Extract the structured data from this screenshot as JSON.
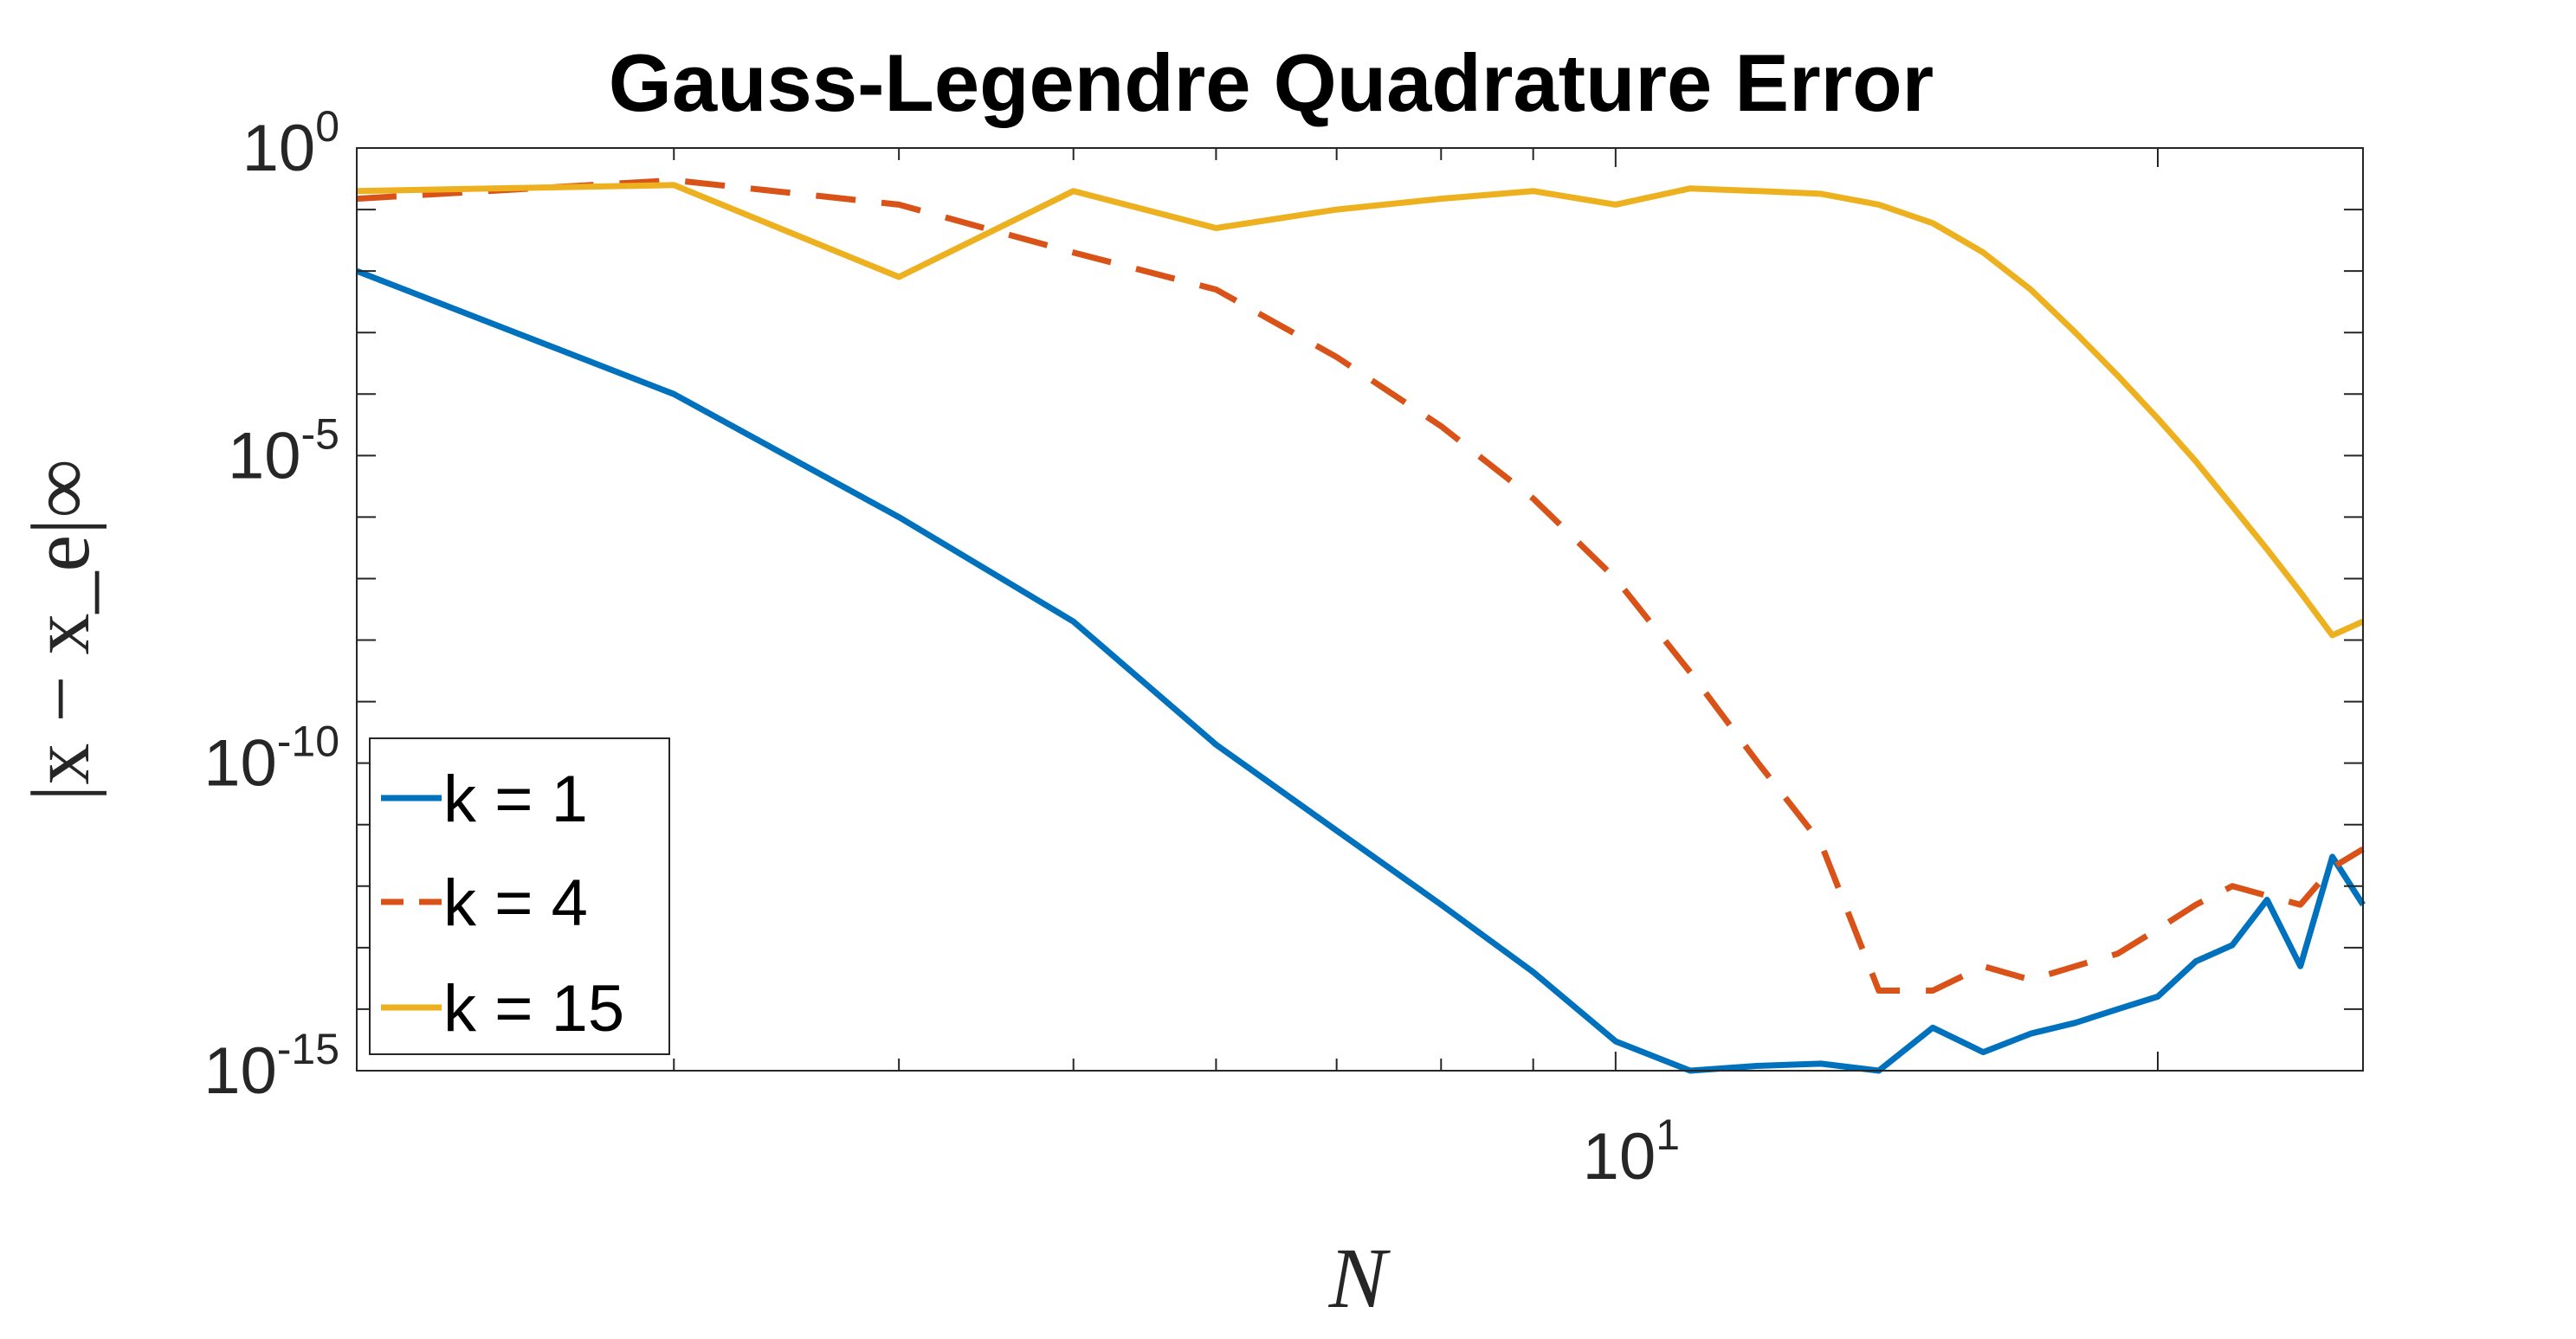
{
  "chart_data": {
    "type": "line",
    "title": "Gauss-Legendre Quadrature Error",
    "xlabel": "N",
    "ylabel": "|x − x_e|∞",
    "xscale": "log",
    "yscale": "log",
    "xlim": [
      2,
      26
    ],
    "ylim": [
      1e-15,
      1
    ],
    "grid": "off",
    "legend_position": "lower-left",
    "x_ticks": [
      {
        "value": 10,
        "base": "10",
        "exp": "1"
      }
    ],
    "y_ticks": [
      {
        "value": 1e-15,
        "base": "10",
        "exp": "-15"
      },
      {
        "value": 1e-10,
        "base": "10",
        "exp": "-10"
      },
      {
        "value": 1e-05,
        "base": "10",
        "exp": "-5"
      },
      {
        "value": 1,
        "base": "10",
        "exp": "0"
      }
    ],
    "series": [
      {
        "name": "k = 1",
        "color": "#0072BD",
        "style": "solid",
        "x": [
          2,
          3,
          4,
          5,
          6,
          7,
          8,
          9,
          10,
          11,
          12,
          13,
          14,
          15,
          16,
          17,
          18,
          19,
          20,
          21,
          22,
          23,
          24,
          25,
          26
        ],
        "y": [
          0.01,
          0.0001,
          1e-06,
          2e-08,
          2e-10,
          8e-12,
          5e-13,
          4e-14,
          3e-15,
          1e-15,
          1.2e-15,
          1.3e-15,
          1e-15,
          5e-15,
          2e-15,
          4e-15,
          6e-15,
          1e-14,
          1.6e-14,
          6e-14,
          1.1e-13,
          6e-13,
          5e-14,
          3e-12,
          5e-13
        ]
      },
      {
        "name": "k = 4",
        "color": "#D95319",
        "style": "dashed",
        "x": [
          2,
          3,
          4,
          5,
          6,
          7,
          8,
          9,
          10,
          11,
          12,
          13,
          14,
          15,
          16,
          17,
          18,
          19,
          20,
          21,
          22,
          23,
          24,
          25,
          26
        ],
        "y": [
          0.15,
          0.3,
          0.12,
          0.02,
          0.005,
          0.0004,
          3e-05,
          2e-06,
          1e-07,
          3e-09,
          1e-10,
          5e-12,
          2e-14,
          2e-14,
          5e-14,
          3e-14,
          5e-14,
          8e-14,
          2e-13,
          5e-13,
          1e-12,
          7e-13,
          5e-13,
          2e-12,
          4e-12
        ]
      },
      {
        "name": "k = 15",
        "color": "#EDB120",
        "style": "solid",
        "x": [
          2,
          3,
          4,
          5,
          6,
          7,
          8,
          9,
          10,
          11,
          12,
          13,
          14,
          15,
          16,
          17,
          18,
          19,
          20,
          21,
          22,
          23,
          24,
          25,
          26
        ],
        "y": [
          0.2,
          0.25,
          0.008,
          0.2,
          0.05,
          0.1,
          0.15,
          0.2,
          0.12,
          0.22,
          0.2,
          0.18,
          0.12,
          0.06,
          0.02,
          0.005,
          0.001,
          0.0002,
          4e-05,
          8e-06,
          1.5e-06,
          3e-07,
          6e-08,
          1.2e-08,
          2e-08
        ]
      }
    ]
  }
}
